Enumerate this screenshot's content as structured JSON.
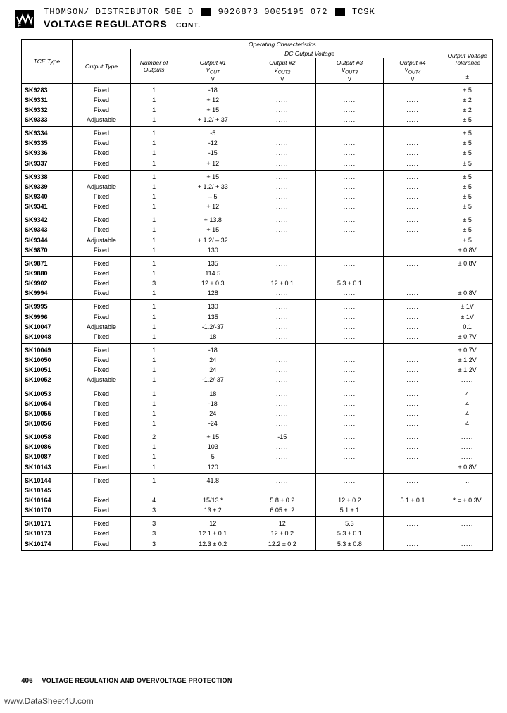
{
  "header": {
    "line1_before": "THOMSON/ DISTRIBUTOR   58E D",
    "line1_mid": "9026873 0005195 072",
    "line1_after": "TCSK",
    "title": "VOLTAGE REGULATORS",
    "cont": "CONT."
  },
  "table": {
    "head": {
      "operating": "Operating Characteristics",
      "tce": "TCE Type",
      "otype": "Output Type",
      "noutputs": "Number of Outputs",
      "dcvolt": "DC Output Voltage",
      "out1": "Output #1",
      "out2": "Output #2",
      "out3": "Output #3",
      "out4": "Output #4",
      "tol": "Output Voltage Tolerance",
      "v1": "V",
      "v1s": "OUT",
      "v2": "V",
      "v2s": "OUT2",
      "v3": "V",
      "v3s": "OUT3",
      "v4": "V",
      "v4s": "OUT4",
      "unit_v": "V",
      "unit_pm": "±"
    },
    "groups": [
      [
        {
          "t": "SK9283",
          "o": "Fixed",
          "n": "1",
          "c4": "-18",
          "c5": ".....",
          "c6": ".....",
          "c7": ".....",
          "c8": "± 5"
        },
        {
          "t": "SK9331",
          "o": "Fixed",
          "n": "1",
          "c4": "+ 12",
          "c5": ".....",
          "c6": ".....",
          "c7": ".....",
          "c8": "± 2"
        },
        {
          "t": "SK9332",
          "o": "Fixed",
          "n": "1",
          "c4": "+ 15",
          "c5": ".....",
          "c6": ".....",
          "c7": ".....",
          "c8": "± 2"
        },
        {
          "t": "SK9333",
          "o": "Adjustable",
          "n": "1",
          "c4": "+ 1.2/ + 37",
          "c5": ".....",
          "c6": ".....",
          "c7": ".....",
          "c8": "± 5"
        }
      ],
      [
        {
          "t": "SK9334",
          "o": "Fixed",
          "n": "1",
          "c4": "-5",
          "c5": ".....",
          "c6": ".....",
          "c7": ".....",
          "c8": "± 5"
        },
        {
          "t": "SK9335",
          "o": "Fixed",
          "n": "1",
          "c4": "-12",
          "c5": ".....",
          "c6": ".....",
          "c7": ".....",
          "c8": "± 5"
        },
        {
          "t": "SK9336",
          "o": "Fixed",
          "n": "1",
          "c4": "-15",
          "c5": ".....",
          "c6": ".....",
          "c7": ".....",
          "c8": "± 5"
        },
        {
          "t": "SK9337",
          "o": "Fixed",
          "n": "1",
          "c4": "+ 12",
          "c5": ".....",
          "c6": ".....",
          "c7": ".....",
          "c8": "± 5"
        }
      ],
      [
        {
          "t": "SK9338",
          "o": "Fixed",
          "n": "1",
          "c4": "+ 15",
          "c5": ".....",
          "c6": ".....",
          "c7": ".....",
          "c8": "± 5"
        },
        {
          "t": "SK9339",
          "o": "Adjustable",
          "n": "1",
          "c4": "+ 1.2/ + 33",
          "c5": ".....",
          "c6": ".....",
          "c7": ".....",
          "c8": "± 5"
        },
        {
          "t": "SK9340",
          "o": "Fixed",
          "n": "1",
          "c4": "– 5",
          "c5": ".....",
          "c6": ".....",
          "c7": ".....",
          "c8": "± 5"
        },
        {
          "t": "SK9341",
          "o": "Fixed",
          "n": "1",
          "c4": "+ 12",
          "c5": ".....",
          "c6": ".....",
          "c7": ".....",
          "c8": "± 5"
        }
      ],
      [
        {
          "t": "SK9342",
          "o": "Fixed",
          "n": "1",
          "c4": "+ 13.8",
          "c5": ".....",
          "c6": ".....",
          "c7": ".....",
          "c8": "± 5"
        },
        {
          "t": "SK9343",
          "o": "Fixed",
          "n": "1",
          "c4": "+ 15",
          "c5": ".....",
          "c6": ".....",
          "c7": ".....",
          "c8": "± 5"
        },
        {
          "t": "SK9344",
          "o": "Adjustable",
          "n": "1",
          "c4": "+ 1.2/ – 32",
          "c5": ".....",
          "c6": ".....",
          "c7": ".....",
          "c8": "± 5"
        },
        {
          "t": "SK9870",
          "o": "Fixed",
          "n": "1",
          "c4": "130",
          "c5": ".....",
          "c6": ".....",
          "c7": ".....",
          "c8": "± 0.8V"
        }
      ],
      [
        {
          "t": "SK9871",
          "o": "Fixed",
          "n": "1",
          "c4": "135",
          "c5": ".....",
          "c6": ".....",
          "c7": ".....",
          "c8": "± 0.8V"
        },
        {
          "t": "SK9880",
          "o": "Fixed",
          "n": "1",
          "c4": "114.5",
          "c5": ".....",
          "c6": ".....",
          "c7": ".....",
          "c8": "....."
        },
        {
          "t": "SK9902",
          "o": "Fixed",
          "n": "3",
          "c4": "12 ± 0.3",
          "c5": "12 ± 0.1",
          "c6": "5.3 ± 0.1",
          "c7": ".....",
          "c8": "....."
        },
        {
          "t": "SK9994",
          "o": "Fixed",
          "n": "1",
          "c4": "128",
          "c5": ".....",
          "c6": ".....",
          "c7": ".....",
          "c8": "± 0.8V"
        }
      ],
      [
        {
          "t": "SK9995",
          "o": "Fixed",
          "n": "1",
          "c4": "130",
          "c5": ".....",
          "c6": ".....",
          "c7": ".....",
          "c8": "± 1V"
        },
        {
          "t": "SK9996",
          "o": "Fixed",
          "n": "1",
          "c4": "135",
          "c5": ".....",
          "c6": ".....",
          "c7": ".....",
          "c8": "± 1V"
        },
        {
          "t": "SK10047",
          "o": "Adjustable",
          "n": "1",
          "c4": "-1.2/-37",
          "c5": ".....",
          "c6": ".....",
          "c7": ".....",
          "c8": "0.1"
        },
        {
          "t": "SK10048",
          "o": "Fixed",
          "n": "1",
          "c4": "18",
          "c5": ".....",
          "c6": ".....",
          "c7": ".....",
          "c8": "± 0.7V"
        }
      ],
      [
        {
          "t": "SK10049",
          "o": "Fixed",
          "n": "1",
          "c4": "-18",
          "c5": ".....",
          "c6": ".....",
          "c7": ".....",
          "c8": "± 0.7V"
        },
        {
          "t": "SK10050",
          "o": "Fixed",
          "n": "1",
          "c4": "24",
          "c5": ".....",
          "c6": ".....",
          "c7": ".....",
          "c8": "± 1.2V"
        },
        {
          "t": "SK10051",
          "o": "Fixed",
          "n": "1",
          "c4": "24",
          "c5": ".....",
          "c6": ".....",
          "c7": ".....",
          "c8": "± 1.2V"
        },
        {
          "t": "SK10052",
          "o": "Adjustable",
          "n": "1",
          "c4": "-1.2/-37",
          "c5": ".....",
          "c6": ".....",
          "c7": ".....",
          "c8": "....."
        }
      ],
      [
        {
          "t": "SK10053",
          "o": "Fixed",
          "n": "1",
          "c4": "18",
          "c5": ".....",
          "c6": ".....",
          "c7": ".....",
          "c8": "4"
        },
        {
          "t": "SK10054",
          "o": "Fixed",
          "n": "1",
          "c4": "-18",
          "c5": ".....",
          "c6": ".....",
          "c7": ".....",
          "c8": "4"
        },
        {
          "t": "SK10055",
          "o": "Fixed",
          "n": "1",
          "c4": "24",
          "c5": ".....",
          "c6": ".....",
          "c7": ".....",
          "c8": "4"
        },
        {
          "t": "SK10056",
          "o": "Fixed",
          "n": "1",
          "c4": "-24",
          "c5": ".....",
          "c6": ".....",
          "c7": ".....",
          "c8": "4"
        }
      ],
      [
        {
          "t": "SK10058",
          "o": "Fixed",
          "n": "2",
          "c4": "+ 15",
          "c5": "-15",
          "c6": ".....",
          "c7": ".....",
          "c8": "....."
        },
        {
          "t": "SK10086",
          "o": "Fixed",
          "n": "1",
          "c4": "103",
          "c5": ".....",
          "c6": ".....",
          "c7": ".....",
          "c8": "....."
        },
        {
          "t": "SK10087",
          "o": "Fixed",
          "n": "1",
          "c4": "5",
          "c5": ".....",
          "c6": ".....",
          "c7": ".....",
          "c8": "....."
        },
        {
          "t": "SK10143",
          "o": "Fixed",
          "n": "1",
          "c4": "120",
          "c5": ".....",
          "c6": ".....",
          "c7": ".....",
          "c8": "± 0.8V"
        }
      ],
      [
        {
          "t": "SK10144",
          "o": "Fixed",
          "n": "1",
          "c4": "41.8",
          "c5": ".....",
          "c6": ".....",
          "c7": ".....",
          "c8": ".."
        },
        {
          "t": "SK10145",
          "o": "..",
          "n": "..",
          "c4": ".....",
          "c5": ".....",
          "c6": ".....",
          "c7": ".....",
          "c8": "....."
        },
        {
          "t": "SK10164",
          "o": "Fixed",
          "n": "4",
          "c4": "15/13 *",
          "c5": "5.8 ± 0.2",
          "c6": "12 ± 0.2",
          "c7": "5.1 ± 0.1",
          "c8": "* = + 0.3V"
        },
        {
          "t": "SK10170",
          "o": "Fixed",
          "n": "3",
          "c4": "13 ± 2",
          "c5": "6.05 ± .2",
          "c6": "5.1 ± 1",
          "c7": ".....",
          "c8": "....."
        }
      ],
      [
        {
          "t": "SK10171",
          "o": "Fixed",
          "n": "3",
          "c4": "12",
          "c5": "12",
          "c6": "5.3",
          "c7": ".....",
          "c8": "....."
        },
        {
          "t": "SK10173",
          "o": "Fixed",
          "n": "3",
          "c4": "12.1 ± 0.1",
          "c5": "12 ± 0.2",
          "c6": "5.3 ± 0.1",
          "c7": ".....",
          "c8": "....."
        },
        {
          "t": "SK10174",
          "o": "Fixed",
          "n": "3",
          "c4": "12.3 ± 0.2",
          "c5": "12.2 ± 0.2",
          "c6": "5.3 ± 0.8",
          "c7": ".....",
          "c8": "....."
        }
      ]
    ]
  },
  "footer": {
    "page": "406",
    "section": "VOLTAGE REGULATION AND OVERVOLTAGE PROTECTION"
  },
  "watermark": "www.DataSheet4U.com"
}
